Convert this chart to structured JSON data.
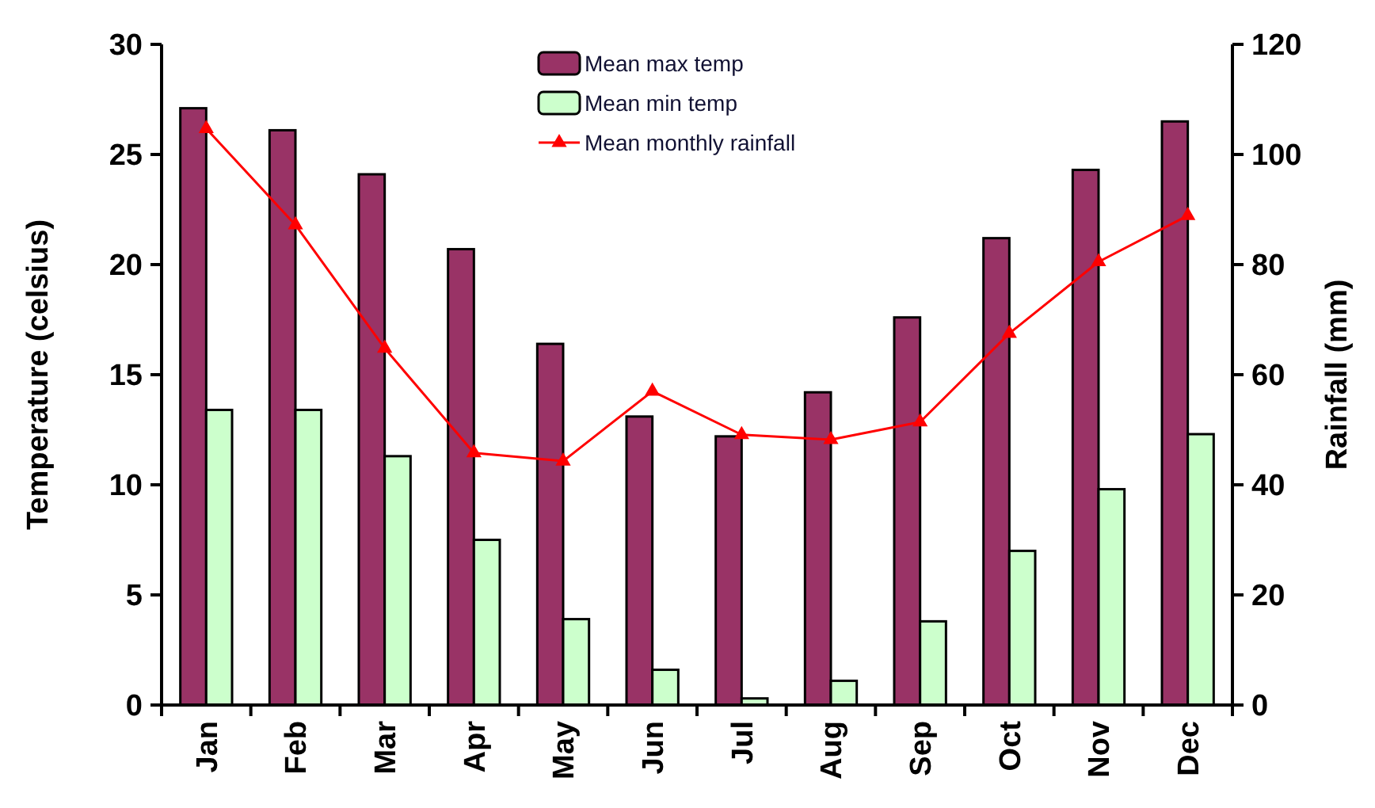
{
  "chart_data": {
    "type": "bar",
    "ylabel": "Temperature (celsius)",
    "y2label": "Rainfall (mm)",
    "categories": [
      "Jan",
      "Feb",
      "Mar",
      "Apr",
      "May",
      "Jun",
      "Jul",
      "Aug",
      "Sep",
      "Oct",
      "Nov",
      "Dec"
    ],
    "series": [
      {
        "name": "Mean max temp",
        "color": "#993366",
        "values": [
          27.1,
          26.1,
          24.1,
          20.7,
          16.4,
          13.1,
          12.2,
          14.2,
          17.6,
          21.2,
          24.3,
          26.5
        ]
      },
      {
        "name": "Mean min temp",
        "color": "#ccffcc",
        "values": [
          13.4,
          13.4,
          11.3,
          7.5,
          3.9,
          1.6,
          0.3,
          1.1,
          3.8,
          7.0,
          9.8,
          12.3
        ]
      },
      {
        "name": "Mean monthly rainfall",
        "type": "line",
        "axis": "y2",
        "color": "#ff0000",
        "marker": "triangle",
        "values": [
          104.7,
          87.2,
          64.8,
          45.8,
          44.3,
          57,
          49.1,
          48.2,
          51.4,
          67.5,
          80.5,
          88.9
        ]
      }
    ],
    "ylim": [
      0,
      30
    ],
    "yticks": [
      0,
      5,
      10,
      15,
      20,
      25,
      30
    ],
    "y2lim": [
      0,
      120
    ],
    "y2ticks": [
      0,
      20,
      40,
      60,
      80,
      100,
      120
    ],
    "grid": false,
    "legend": "top"
  }
}
